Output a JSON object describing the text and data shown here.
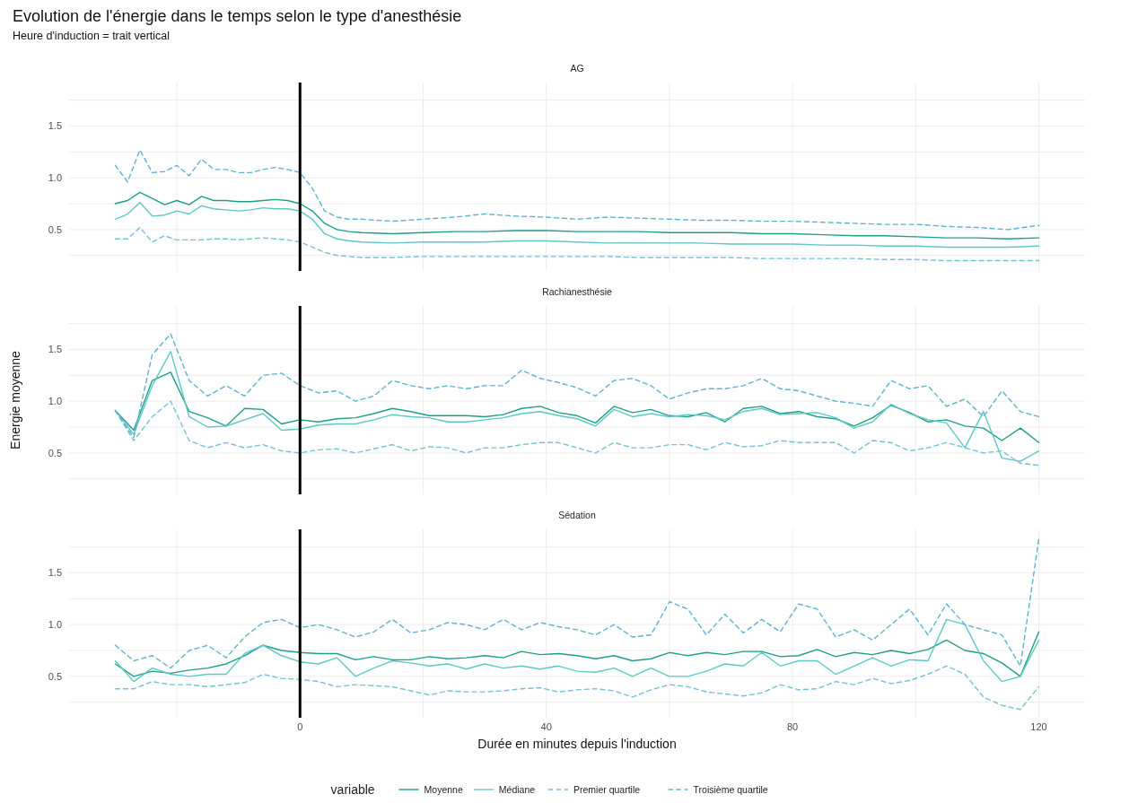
{
  "chart_data": [
    {
      "type": "other",
      "title": "Evolution de l'énergie dans le temps selon le type d'anesthésie",
      "subtitle": "Heure d'induction = trait vertical"
    },
    {
      "type": "line",
      "title": "AG",
      "tick_labels": "y",
      "grid": true,
      "xlim": [
        -37.5,
        127.5
      ],
      "ylim": [
        0.1,
        1.92
      ],
      "xticks": [
        {
          "value": -20,
          "label": null
        },
        {
          "value": 0,
          "label": null
        },
        {
          "value": 20,
          "label": null
        },
        {
          "value": 40,
          "label": null
        },
        {
          "value": 60,
          "label": null
        },
        {
          "value": 80,
          "label": null
        },
        {
          "value": 100,
          "label": null
        },
        {
          "value": 120,
          "label": null
        }
      ],
      "yticks": [
        {
          "value": 0.25,
          "label": null
        },
        {
          "value": 0.5,
          "label": "0.5"
        },
        {
          "value": 0.75,
          "label": null
        },
        {
          "value": 1.0,
          "label": "1.0"
        },
        {
          "value": 1.25,
          "label": null
        },
        {
          "value": 1.5,
          "label": "1.5"
        },
        {
          "value": 1.75,
          "label": null
        }
      ],
      "ref_lines": [
        {
          "axis": "x",
          "value": 0,
          "color": "#000000"
        }
      ],
      "x": [
        -30,
        -28,
        -26,
        -24,
        -22,
        -20,
        -18,
        -16,
        -14,
        -12,
        -10,
        -8,
        -6,
        -4,
        -2,
        0,
        2,
        4,
        6,
        8,
        10,
        15,
        20,
        25,
        30,
        35,
        40,
        45,
        50,
        55,
        60,
        65,
        70,
        75,
        80,
        85,
        90,
        95,
        100,
        105,
        110,
        115,
        120
      ],
      "series": [
        {
          "color": "#1f9e89",
          "line_style": "solid",
          "values": [
            0.75,
            0.78,
            0.86,
            0.8,
            0.74,
            0.78,
            0.74,
            0.82,
            0.78,
            0.78,
            0.77,
            0.77,
            0.78,
            0.79,
            0.78,
            0.75,
            0.68,
            0.56,
            0.5,
            0.48,
            0.47,
            0.46,
            0.47,
            0.48,
            0.48,
            0.49,
            0.49,
            0.48,
            0.48,
            0.48,
            0.47,
            0.47,
            0.47,
            0.46,
            0.46,
            0.45,
            0.44,
            0.44,
            0.43,
            0.42,
            0.42,
            0.41,
            0.42
          ]
        },
        {
          "color": "#5ec7c9",
          "line_style": "solid",
          "values": [
            0.6,
            0.65,
            0.76,
            0.63,
            0.64,
            0.68,
            0.65,
            0.73,
            0.7,
            0.69,
            0.68,
            0.69,
            0.71,
            0.7,
            0.7,
            0.68,
            0.6,
            0.46,
            0.41,
            0.39,
            0.38,
            0.37,
            0.38,
            0.38,
            0.38,
            0.39,
            0.39,
            0.38,
            0.37,
            0.37,
            0.37,
            0.37,
            0.36,
            0.36,
            0.36,
            0.35,
            0.35,
            0.34,
            0.34,
            0.33,
            0.33,
            0.33,
            0.34
          ]
        },
        {
          "color": "#74c0d6",
          "line_style": "dashed",
          "values": [
            0.41,
            0.41,
            0.52,
            0.38,
            0.44,
            0.4,
            0.4,
            0.4,
            0.41,
            0.41,
            0.4,
            0.41,
            0.42,
            0.41,
            0.4,
            0.38,
            0.33,
            0.28,
            0.25,
            0.24,
            0.23,
            0.23,
            0.24,
            0.24,
            0.24,
            0.24,
            0.24,
            0.24,
            0.24,
            0.23,
            0.23,
            0.23,
            0.23,
            0.22,
            0.22,
            0.22,
            0.22,
            0.21,
            0.21,
            0.2,
            0.2,
            0.2,
            0.2
          ]
        },
        {
          "color": "#5fb2cf",
          "line_style": "dashed",
          "values": [
            1.12,
            0.96,
            1.27,
            1.05,
            1.06,
            1.12,
            1.02,
            1.18,
            1.08,
            1.08,
            1.05,
            1.05,
            1.08,
            1.1,
            1.08,
            1.05,
            0.9,
            0.68,
            0.62,
            0.6,
            0.6,
            0.58,
            0.6,
            0.62,
            0.65,
            0.63,
            0.62,
            0.6,
            0.62,
            0.61,
            0.6,
            0.59,
            0.59,
            0.58,
            0.58,
            0.57,
            0.56,
            0.55,
            0.55,
            0.53,
            0.52,
            0.5,
            0.54
          ]
        }
      ]
    },
    {
      "type": "line",
      "title": "Rachianesthésie",
      "ylabel": "Energie moyenne",
      "tick_labels": "y",
      "grid": true,
      "xlim": [
        -37.5,
        127.5
      ],
      "ylim": [
        0.1,
        1.92
      ],
      "xticks": [
        {
          "value": -20,
          "label": null
        },
        {
          "value": 0,
          "label": null
        },
        {
          "value": 20,
          "label": null
        },
        {
          "value": 40,
          "label": null
        },
        {
          "value": 60,
          "label": null
        },
        {
          "value": 80,
          "label": null
        },
        {
          "value": 100,
          "label": null
        },
        {
          "value": 120,
          "label": null
        }
      ],
      "yticks": [
        {
          "value": 0.25,
          "label": null
        },
        {
          "value": 0.5,
          "label": "0.5"
        },
        {
          "value": 0.75,
          "label": null
        },
        {
          "value": 1.0,
          "label": "1.0"
        },
        {
          "value": 1.25,
          "label": null
        },
        {
          "value": 1.5,
          "label": "1.5"
        },
        {
          "value": 1.75,
          "label": null
        }
      ],
      "ref_lines": [
        {
          "axis": "x",
          "value": 0,
          "color": "#000000"
        }
      ],
      "x": [
        -30,
        -27,
        -24,
        -21,
        -18,
        -15,
        -12,
        -9,
        -6,
        -3,
        0,
        3,
        6,
        9,
        12,
        15,
        18,
        21,
        24,
        27,
        30,
        33,
        36,
        39,
        42,
        45,
        48,
        51,
        54,
        57,
        60,
        63,
        66,
        69,
        72,
        75,
        78,
        81,
        84,
        87,
        90,
        93,
        96,
        99,
        102,
        105,
        108,
        111,
        114,
        117,
        120
      ],
      "series": [
        {
          "color": "#1f9e89",
          "line_style": "solid",
          "values": [
            0.91,
            0.72,
            1.2,
            1.28,
            0.9,
            0.84,
            0.76,
            0.93,
            0.92,
            0.78,
            0.82,
            0.8,
            0.83,
            0.84,
            0.88,
            0.93,
            0.9,
            0.86,
            0.86,
            0.86,
            0.85,
            0.87,
            0.93,
            0.95,
            0.89,
            0.86,
            0.79,
            0.95,
            0.89,
            0.92,
            0.86,
            0.85,
            0.89,
            0.8,
            0.93,
            0.95,
            0.88,
            0.9,
            0.85,
            0.83,
            0.76,
            0.84,
            0.96,
            0.89,
            0.8,
            0.82,
            0.76,
            0.74,
            0.62,
            0.74,
            0.6
          ]
        },
        {
          "color": "#5ec7c9",
          "line_style": "solid",
          "values": [
            0.91,
            0.68,
            1.15,
            1.48,
            0.85,
            0.75,
            0.76,
            0.82,
            0.88,
            0.72,
            0.73,
            0.77,
            0.78,
            0.78,
            0.82,
            0.87,
            0.85,
            0.84,
            0.8,
            0.8,
            0.82,
            0.84,
            0.88,
            0.9,
            0.86,
            0.83,
            0.76,
            0.92,
            0.85,
            0.88,
            0.85,
            0.87,
            0.86,
            0.82,
            0.9,
            0.93,
            0.87,
            0.88,
            0.89,
            0.84,
            0.74,
            0.8,
            0.97,
            0.88,
            0.82,
            0.79,
            0.55,
            0.9,
            0.45,
            0.42,
            0.52
          ]
        },
        {
          "color": "#74c0d6",
          "line_style": "dashed",
          "values": [
            0.91,
            0.62,
            0.85,
            1.0,
            0.62,
            0.55,
            0.6,
            0.55,
            0.58,
            0.52,
            0.5,
            0.53,
            0.54,
            0.5,
            0.54,
            0.58,
            0.52,
            0.56,
            0.55,
            0.5,
            0.55,
            0.55,
            0.58,
            0.6,
            0.6,
            0.55,
            0.5,
            0.6,
            0.55,
            0.55,
            0.58,
            0.58,
            0.53,
            0.6,
            0.56,
            0.57,
            0.62,
            0.6,
            0.6,
            0.6,
            0.5,
            0.62,
            0.6,
            0.52,
            0.55,
            0.6,
            0.55,
            0.5,
            0.52,
            0.4,
            0.38
          ]
        },
        {
          "color": "#5fb2cf",
          "line_style": "dashed",
          "values": [
            0.91,
            0.65,
            1.45,
            1.65,
            1.2,
            1.05,
            1.15,
            1.05,
            1.25,
            1.27,
            1.15,
            1.08,
            1.1,
            1.0,
            1.05,
            1.2,
            1.15,
            1.12,
            1.15,
            1.12,
            1.15,
            1.15,
            1.3,
            1.22,
            1.18,
            1.13,
            1.05,
            1.2,
            1.22,
            1.15,
            1.02,
            1.08,
            1.12,
            1.12,
            1.15,
            1.22,
            1.12,
            1.1,
            1.05,
            1.0,
            0.98,
            0.95,
            1.2,
            1.12,
            1.15,
            0.95,
            1.02,
            0.85,
            1.1,
            0.9,
            0.85
          ]
        }
      ]
    },
    {
      "type": "line",
      "title": "Sédation",
      "xlabel": "Durée en minutes depuis l'induction",
      "legend_title": "variable",
      "legend": "bottom",
      "grid": true,
      "xlim": [
        -37.5,
        127.5
      ],
      "ylim": [
        0.1,
        1.92
      ],
      "xticks": [
        {
          "value": -20,
          "label": null
        },
        {
          "value": 0,
          "label": "0"
        },
        {
          "value": 20,
          "label": null
        },
        {
          "value": 40,
          "label": "40"
        },
        {
          "value": 60,
          "label": null
        },
        {
          "value": 80,
          "label": "80"
        },
        {
          "value": 100,
          "label": null
        },
        {
          "value": 120,
          "label": "120"
        }
      ],
      "yticks": [
        {
          "value": 0.25,
          "label": null
        },
        {
          "value": 0.5,
          "label": "0.5"
        },
        {
          "value": 0.75,
          "label": null
        },
        {
          "value": 1.0,
          "label": "1.0"
        },
        {
          "value": 1.25,
          "label": null
        },
        {
          "value": 1.5,
          "label": "1.5"
        },
        {
          "value": 1.75,
          "label": null
        }
      ],
      "ref_lines": [
        {
          "axis": "x",
          "value": 0,
          "color": "#000000"
        }
      ],
      "x": [
        -30,
        -27,
        -24,
        -21,
        -18,
        -15,
        -12,
        -9,
        -6,
        -3,
        0,
        3,
        6,
        9,
        12,
        15,
        18,
        21,
        24,
        27,
        30,
        33,
        36,
        39,
        42,
        45,
        48,
        51,
        54,
        57,
        60,
        63,
        66,
        69,
        72,
        75,
        78,
        81,
        84,
        87,
        90,
        93,
        96,
        99,
        102,
        105,
        108,
        111,
        114,
        117,
        120
      ],
      "series": [
        {
          "name": "Moyenne",
          "color": "#1f9e89",
          "line_style": "solid",
          "values": [
            0.62,
            0.5,
            0.55,
            0.53,
            0.56,
            0.58,
            0.62,
            0.7,
            0.8,
            0.75,
            0.73,
            0.72,
            0.72,
            0.66,
            0.69,
            0.66,
            0.66,
            0.69,
            0.67,
            0.68,
            0.7,
            0.68,
            0.74,
            0.71,
            0.72,
            0.7,
            0.67,
            0.7,
            0.65,
            0.67,
            0.73,
            0.7,
            0.73,
            0.71,
            0.74,
            0.74,
            0.69,
            0.7,
            0.76,
            0.69,
            0.73,
            0.71,
            0.75,
            0.72,
            0.76,
            0.85,
            0.75,
            0.72,
            0.63,
            0.5,
            0.93
          ]
        },
        {
          "name": "Médiane",
          "color": "#5ec7c9",
          "line_style": "solid",
          "values": [
            0.65,
            0.45,
            0.58,
            0.52,
            0.5,
            0.52,
            0.52,
            0.72,
            0.8,
            0.7,
            0.64,
            0.62,
            0.68,
            0.5,
            0.58,
            0.65,
            0.63,
            0.6,
            0.62,
            0.57,
            0.62,
            0.58,
            0.6,
            0.57,
            0.6,
            0.55,
            0.54,
            0.58,
            0.5,
            0.58,
            0.5,
            0.5,
            0.55,
            0.62,
            0.6,
            0.73,
            0.6,
            0.65,
            0.65,
            0.52,
            0.6,
            0.68,
            0.6,
            0.66,
            0.65,
            1.05,
            1.0,
            0.65,
            0.45,
            0.5,
            0.85
          ]
        },
        {
          "name": "Premier quartile",
          "color": "#74c0d6",
          "line_style": "dashed",
          "values": [
            0.38,
            0.38,
            0.45,
            0.42,
            0.42,
            0.4,
            0.42,
            0.44,
            0.52,
            0.48,
            0.47,
            0.45,
            0.4,
            0.42,
            0.41,
            0.4,
            0.36,
            0.32,
            0.36,
            0.35,
            0.35,
            0.36,
            0.38,
            0.39,
            0.35,
            0.37,
            0.38,
            0.36,
            0.3,
            0.37,
            0.42,
            0.4,
            0.35,
            0.33,
            0.31,
            0.34,
            0.42,
            0.37,
            0.38,
            0.45,
            0.42,
            0.48,
            0.43,
            0.46,
            0.52,
            0.6,
            0.52,
            0.3,
            0.22,
            0.18,
            0.4
          ]
        },
        {
          "name": "Troisième quartile",
          "color": "#5fb2cf",
          "line_style": "dashed",
          "values": [
            0.8,
            0.65,
            0.7,
            0.58,
            0.75,
            0.8,
            0.68,
            0.88,
            1.02,
            1.05,
            0.97,
            1.0,
            0.95,
            0.88,
            0.93,
            1.05,
            0.92,
            0.95,
            1.02,
            1.0,
            0.95,
            1.05,
            0.95,
            1.02,
            0.98,
            0.95,
            0.9,
            1.0,
            0.88,
            0.9,
            1.22,
            1.15,
            0.9,
            1.1,
            0.92,
            1.05,
            0.93,
            1.2,
            1.15,
            0.88,
            0.95,
            0.85,
            1.0,
            1.15,
            0.9,
            1.2,
            1.0,
            0.95,
            0.9,
            0.6,
            1.83
          ]
        }
      ]
    }
  ]
}
